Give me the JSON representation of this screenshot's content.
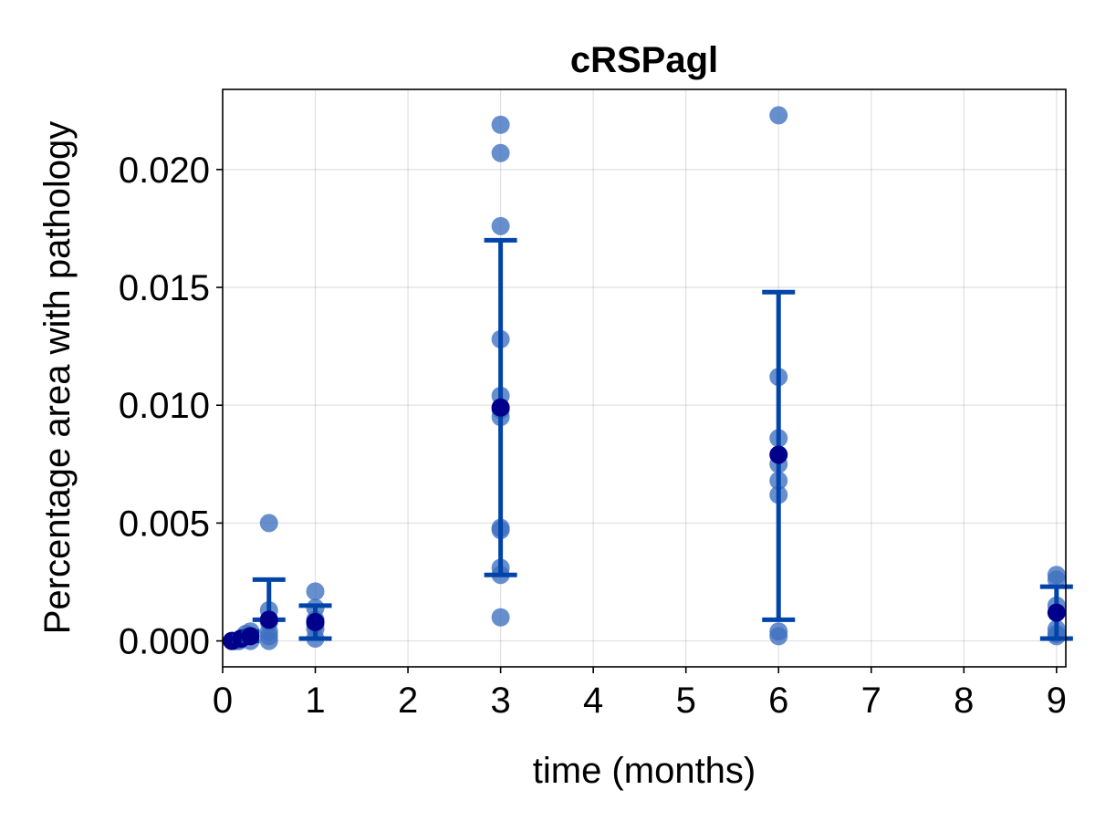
{
  "chart_data": {
    "type": "scatter",
    "title": "cRSPagl",
    "xlabel": "time (months)",
    "ylabel": "Percentage area with pathology",
    "xlim": [
      0,
      9.1
    ],
    "ylim": [
      -0.0011,
      0.0234
    ],
    "xticks": [
      0,
      1,
      2,
      3,
      4,
      5,
      6,
      7,
      8,
      9
    ],
    "yticks": [
      0.0,
      0.005,
      0.01,
      0.015,
      0.02
    ],
    "ytick_labels": [
      "0.000",
      "0.005",
      "0.010",
      "0.015",
      "0.020"
    ],
    "grid": true,
    "point_color": "#3d6fbf",
    "mean_color": "#00008b",
    "errorbar_color": "#0044aa",
    "points": [
      {
        "x": 0.1,
        "y": 0.0
      },
      {
        "x": 0.12,
        "y": 0.0
      },
      {
        "x": 0.15,
        "y": 0.0
      },
      {
        "x": 0.18,
        "y": 0.0
      },
      {
        "x": 0.2,
        "y": 0.0001
      },
      {
        "x": 0.25,
        "y": 0.0003
      },
      {
        "x": 0.3,
        "y": 0.0004
      },
      {
        "x": 0.3,
        "y": 0.0
      },
      {
        "x": 0.5,
        "y": 0.005
      },
      {
        "x": 0.5,
        "y": 0.0013
      },
      {
        "x": 0.5,
        "y": 0.0008
      },
      {
        "x": 0.5,
        "y": 0.0004
      },
      {
        "x": 0.5,
        "y": 0.0002
      },
      {
        "x": 0.5,
        "y": 0.0
      },
      {
        "x": 1,
        "y": 0.0021
      },
      {
        "x": 1,
        "y": 0.0014
      },
      {
        "x": 1,
        "y": 0.0009
      },
      {
        "x": 1,
        "y": 0.0007
      },
      {
        "x": 1,
        "y": 0.0005
      },
      {
        "x": 1,
        "y": 0.0001
      },
      {
        "x": 3,
        "y": 0.0219
      },
      {
        "x": 3,
        "y": 0.0207
      },
      {
        "x": 3,
        "y": 0.0176
      },
      {
        "x": 3,
        "y": 0.0128
      },
      {
        "x": 3,
        "y": 0.0104
      },
      {
        "x": 3,
        "y": 0.0098
      },
      {
        "x": 3,
        "y": 0.0095
      },
      {
        "x": 3,
        "y": 0.0048
      },
      {
        "x": 3,
        "y": 0.0047
      },
      {
        "x": 3,
        "y": 0.0031
      },
      {
        "x": 3,
        "y": 0.0028
      },
      {
        "x": 3,
        "y": 0.001
      },
      {
        "x": 6,
        "y": 0.0223
      },
      {
        "x": 6,
        "y": 0.0112
      },
      {
        "x": 6,
        "y": 0.0086
      },
      {
        "x": 6,
        "y": 0.0075
      },
      {
        "x": 6,
        "y": 0.0068
      },
      {
        "x": 6,
        "y": 0.0062
      },
      {
        "x": 6,
        "y": 0.0004
      },
      {
        "x": 6,
        "y": 0.0002
      },
      {
        "x": 9,
        "y": 0.0028
      },
      {
        "x": 9,
        "y": 0.0026
      },
      {
        "x": 9,
        "y": 0.0015
      },
      {
        "x": 9,
        "y": 0.0005
      },
      {
        "x": 9,
        "y": 0.0003
      },
      {
        "x": 9,
        "y": 0.0002
      }
    ],
    "summary": [
      {
        "x": 0.1,
        "mean": 0.0,
        "lower": 0.0,
        "upper": 0.0
      },
      {
        "x": 0.2,
        "mean": 0.0001,
        "lower": 0.0,
        "upper": 0.0002
      },
      {
        "x": 0.3,
        "mean": 0.0002,
        "lower": 0.0,
        "upper": 0.0004
      },
      {
        "x": 0.5,
        "mean": 0.0009,
        "lower": 0.0009,
        "upper": 0.0026
      },
      {
        "x": 1,
        "mean": 0.0008,
        "lower": 0.0001,
        "upper": 0.0015
      },
      {
        "x": 3,
        "mean": 0.0099,
        "lower": 0.0028,
        "upper": 0.017
      },
      {
        "x": 6,
        "mean": 0.0079,
        "lower": 0.0009,
        "upper": 0.0148
      },
      {
        "x": 9,
        "mean": 0.0012,
        "lower": 0.0001,
        "upper": 0.0023
      }
    ]
  }
}
